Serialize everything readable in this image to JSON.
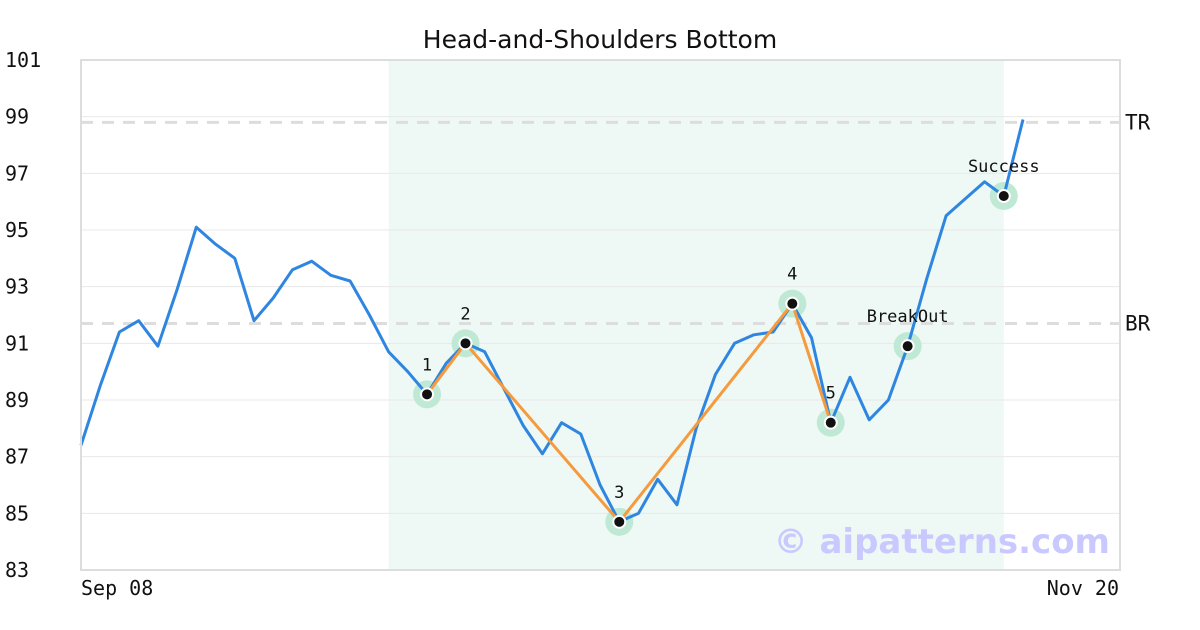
{
  "chart_data": {
    "type": "line",
    "title": "Head-and-Shoulders Bottom",
    "xlabel": "",
    "ylabel": "",
    "x_tick_labels": [
      "Sep 08",
      "Nov 20"
    ],
    "y_ticks": [
      83,
      85,
      87,
      89,
      91,
      93,
      95,
      97,
      99,
      101
    ],
    "ylim": [
      83,
      101
    ],
    "grid": "horizontal",
    "series": [
      {
        "values": [
          87.4,
          89.5,
          91.4,
          91.8,
          90.9,
          92.9,
          95.1,
          94.5,
          94.0,
          91.8,
          92.6,
          93.6,
          93.9,
          93.4,
          93.2,
          92.0,
          90.7,
          90.0,
          89.2,
          90.3,
          91.0,
          90.7,
          89.4,
          88.1,
          87.1,
          88.2,
          87.8,
          86.0,
          84.7,
          85.0,
          86.2,
          85.3,
          88.0,
          89.9,
          91.0,
          91.3,
          91.4,
          92.4,
          91.2,
          88.2,
          89.8,
          88.3,
          89.0,
          90.9,
          93.3,
          95.5,
          96.1,
          96.7,
          96.2,
          98.9
        ]
      }
    ],
    "pattern_region": {
      "start_index": 16,
      "end_index": 48
    },
    "levels": [
      {
        "label": "TR",
        "value": 98.8
      },
      {
        "label": "BR",
        "value": 91.7
      }
    ],
    "pattern_points": [
      {
        "label": "1",
        "index": 18,
        "value": 89.2
      },
      {
        "label": "2",
        "index": 20,
        "value": 91.0
      },
      {
        "label": "3",
        "index": 28,
        "value": 84.7
      },
      {
        "label": "4",
        "index": 37,
        "value": 92.4
      },
      {
        "label": "5",
        "index": 39,
        "value": 88.2
      }
    ],
    "events": [
      {
        "label": "BreakOut",
        "index": 43,
        "value": 90.9
      },
      {
        "label": "Success",
        "index": 48,
        "value": 96.2
      }
    ],
    "colors": {
      "price_line": "#2f86e0",
      "pattern_line": "#f59a3d",
      "highlight": "#eef8f4",
      "marker_halo": "#bfe9d5",
      "level_line": "#dddddd",
      "grid": "#e8e8e8"
    },
    "watermark": "© aipatterns.com"
  }
}
